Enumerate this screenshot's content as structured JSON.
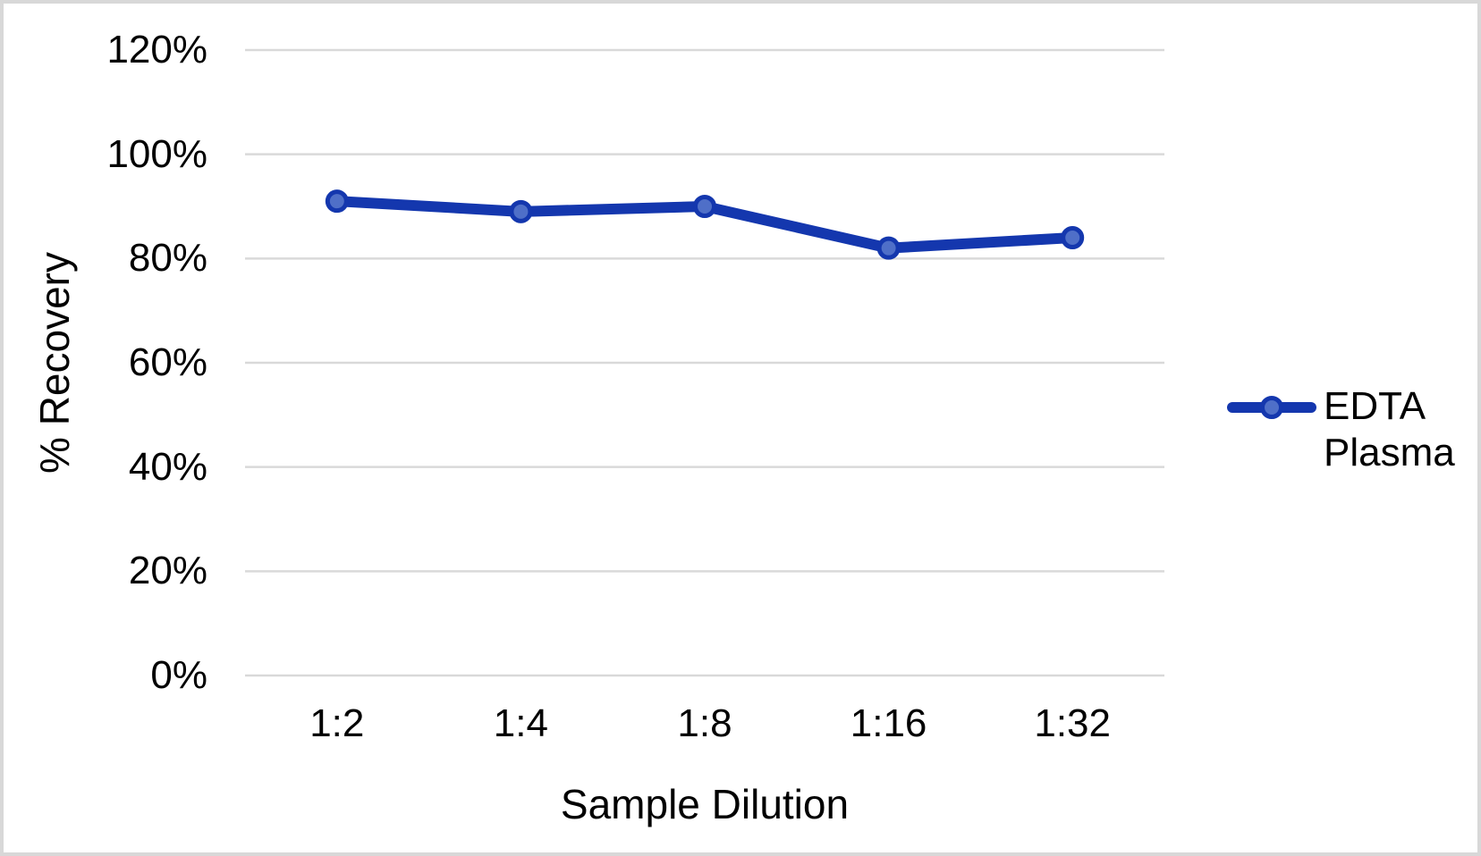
{
  "chart_data": {
    "type": "line",
    "title": "",
    "categories": [
      "1:2",
      "1:4",
      "1:8",
      "1:16",
      "1:32"
    ],
    "series": [
      {
        "name": "EDTA Plasma",
        "values": [
          91,
          89,
          90,
          82,
          84
        ]
      }
    ],
    "values_unit": "%",
    "xlabel": "Sample Dilution",
    "ylabel": "% Recovery",
    "ylim": [
      0,
      120
    ],
    "ytick_step": 20,
    "ytick_labels": [
      "0%",
      "20%",
      "40%",
      "60%",
      "80%",
      "100%",
      "120%"
    ],
    "grid": true,
    "legend": {
      "position": "right-middle",
      "lines": [
        "EDTA",
        "Plasma"
      ]
    },
    "colors": {
      "series_line": "#1437ae",
      "marker_fill": "#4f6fc8",
      "marker_stroke": "#1437ae",
      "gridline": "#d9d9d9",
      "text": "#000000",
      "frame_border": "#d8d8d8",
      "background": "#ffffff"
    }
  }
}
